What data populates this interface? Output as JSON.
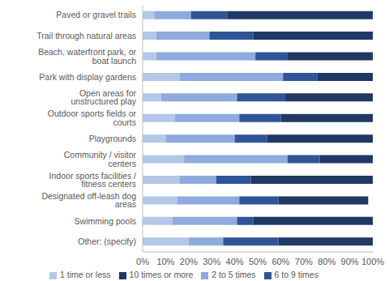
{
  "chart_data": {
    "type": "bar",
    "orientation": "horizontal",
    "stacked": true,
    "grid": false,
    "legend": "bottom",
    "categories": [
      "Paved or gravel trails",
      "Trail through natural areas",
      "Beach, waterfront park, or boat launch",
      "Park with display gardens",
      "Open areas for unstructured play",
      "Outdoor sports fields or courts",
      "Playgrounds",
      "Community / visitor centers",
      "Indoor sports facilities / fitness centers",
      "Designated off-leash dog areas",
      "Swimming pools",
      "Other: (specify)"
    ],
    "series": [
      {
        "name": "1 time or less",
        "color": "#b4c7e7",
        "values": [
          5,
          6,
          6,
          16,
          8,
          14,
          10,
          18,
          16,
          15,
          13,
          20
        ]
      },
      {
        "name": "2 to 5 times",
        "color": "#8faadc",
        "values": [
          16,
          23,
          43,
          45,
          33,
          28,
          30,
          45,
          16,
          27,
          28,
          15
        ]
      },
      {
        "name": "6 to 9 times",
        "color": "#2f5597",
        "values": [
          16,
          19,
          14,
          15,
          21,
          18,
          14,
          14,
          15,
          17,
          7,
          24
        ]
      },
      {
        "name": "10 times or more",
        "color": "#203864",
        "values": [
          63,
          52,
          37,
          24,
          38,
          40,
          46,
          23,
          53,
          39,
          52,
          41
        ]
      }
    ],
    "xlim": [
      0,
      100
    ],
    "xticks": [
      {
        "value": 0,
        "label": "0%"
      },
      {
        "value": 10,
        "label": "10%"
      },
      {
        "value": 20,
        "label": "20%"
      },
      {
        "value": 30,
        "label": "30%"
      },
      {
        "value": 40,
        "label": "40%"
      },
      {
        "value": 50,
        "label": "50%"
      },
      {
        "value": 60,
        "label": "60%"
      },
      {
        "value": 70,
        "label": "70%"
      },
      {
        "value": 80,
        "label": "80%"
      },
      {
        "value": 90,
        "label": "90%"
      },
      {
        "value": 100,
        "label": "100%"
      }
    ]
  }
}
